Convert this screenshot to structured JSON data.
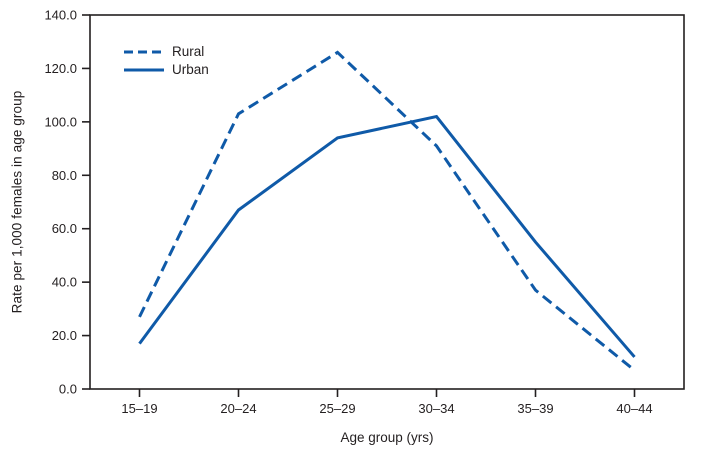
{
  "figure": {
    "x_axis_title": "Age group (yrs)",
    "y_axis_title": "Rate per 1,000 females in age group"
  },
  "legend": {
    "items": [
      {
        "label": "Rural",
        "style": "dashed"
      },
      {
        "label": "Urban",
        "style": "solid"
      }
    ]
  },
  "colors": {
    "line": "#0f5aa8",
    "axis": "#231f20",
    "background": "#ffffff"
  },
  "chart_data": {
    "type": "line",
    "title": "",
    "xlabel": "Age group (yrs)",
    "ylabel": "Rate per 1,000 females in age group",
    "categories": [
      "15–19",
      "20–24",
      "25–29",
      "30–34",
      "35–39",
      "40–44"
    ],
    "series": [
      {
        "name": "Rural",
        "style": "dashed",
        "values": [
          27,
          103,
          126,
          91,
          37,
          7
        ]
      },
      {
        "name": "Urban",
        "style": "solid",
        "values": [
          17,
          67,
          94,
          102,
          55,
          12
        ]
      }
    ],
    "ylim": [
      0,
      140
    ],
    "yticks": [
      "0.0",
      "20.0",
      "40.0",
      "60.0",
      "80.0",
      "100.0",
      "120.0",
      "140.0"
    ],
    "grid": false,
    "legend_position": "top-left"
  }
}
